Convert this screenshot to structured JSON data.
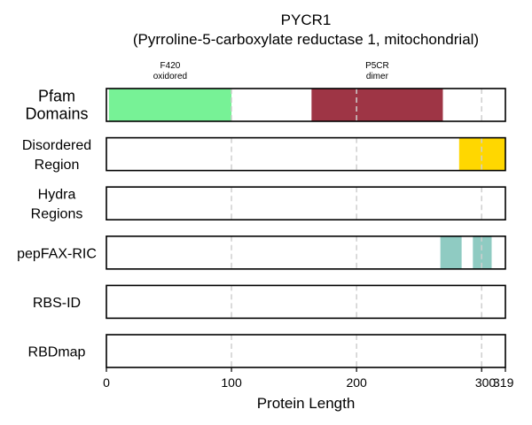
{
  "chart_data": {
    "type": "bar",
    "title": "PYCR1",
    "subtitle": "(Pyrroline-5-carboxylate reductase 1, mitochondrial)",
    "xlabel": "Protein Length",
    "protein_length": 319,
    "xlim": [
      0,
      319
    ],
    "xticks": [
      0,
      100,
      200,
      300,
      319
    ],
    "gridlines": [
      100,
      200,
      300
    ],
    "grid": true,
    "tracks": [
      {
        "label_lines": [
          "Pfam",
          "Domains"
        ],
        "big": true,
        "features": [
          {
            "start": 2,
            "end": 100,
            "color": "#77f296",
            "label_lines": [
              "F420",
              "oxidored"
            ]
          },
          {
            "start": 164,
            "end": 269,
            "color": "#9e3545",
            "label_lines": [
              "P5CR",
              "dimer"
            ]
          }
        ]
      },
      {
        "label_lines": [
          "Disordered",
          "Region"
        ],
        "big": false,
        "features": [
          {
            "start": 282,
            "end": 319,
            "color": "#ffd700",
            "label_lines": []
          }
        ]
      },
      {
        "label_lines": [
          "Hydra",
          "Regions"
        ],
        "big": false,
        "features": []
      },
      {
        "label_lines": [
          "pepFAX-RIC"
        ],
        "big": false,
        "features": [
          {
            "start": 267,
            "end": 284,
            "color": "#8fcbc2",
            "label_lines": []
          },
          {
            "start": 293,
            "end": 308,
            "color": "#8fcbc2",
            "label_lines": []
          }
        ]
      },
      {
        "label_lines": [
          "RBS-ID"
        ],
        "big": false,
        "features": []
      },
      {
        "label_lines": [
          "RBDmap"
        ],
        "big": false,
        "features": []
      }
    ]
  }
}
